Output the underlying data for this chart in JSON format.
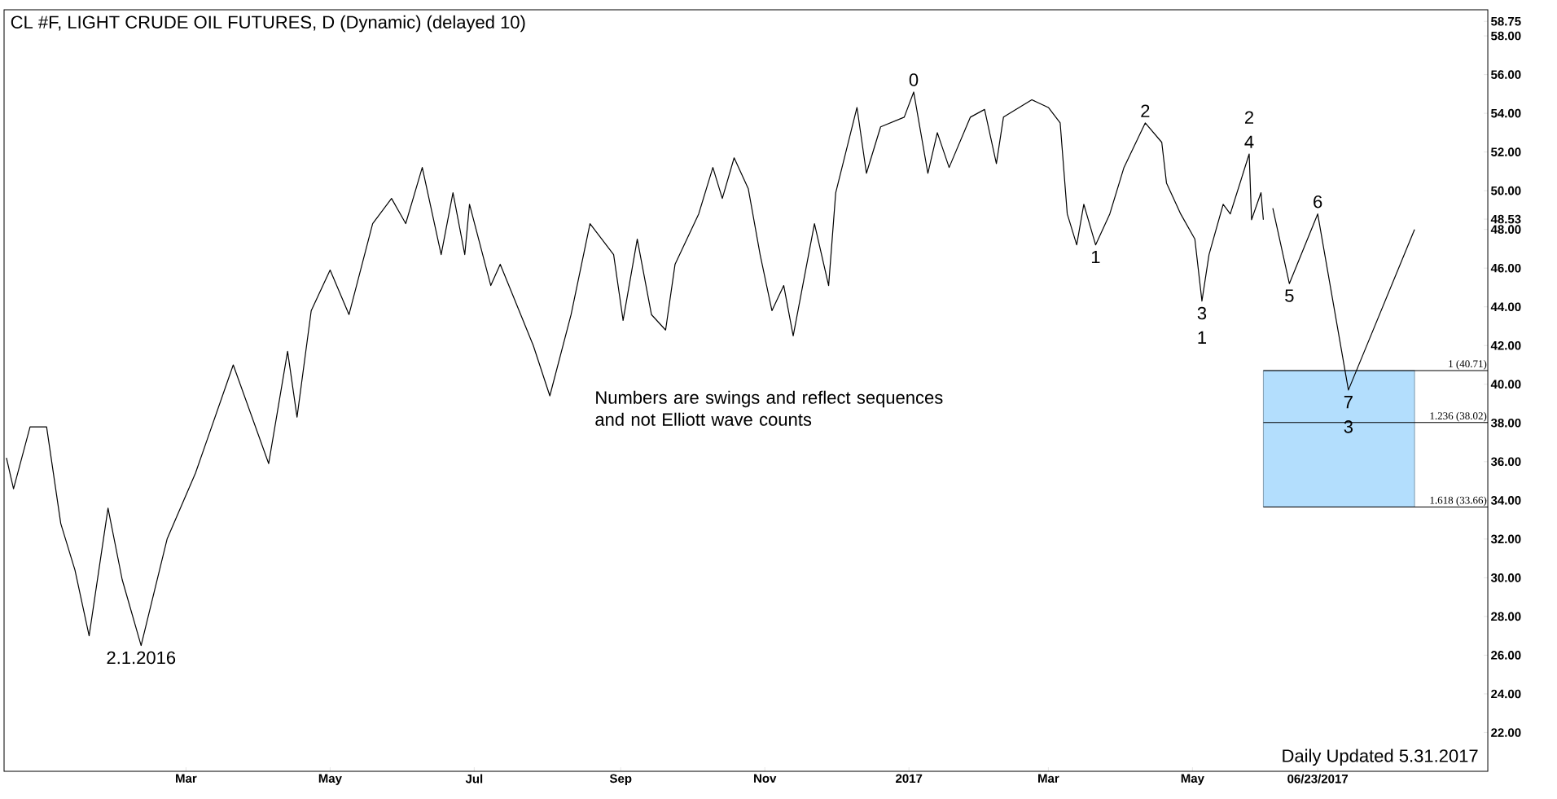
{
  "chart_data": {
    "type": "line",
    "title": "CL #F, LIGHT CRUDE OIL FUTURES, D (Dynamic) (delayed 10)",
    "xlim": [
      "2015-12-15",
      "2017-09-03"
    ],
    "xticks": [
      {
        "value": "2016-03-01",
        "label": "Mar"
      },
      {
        "value": "2016-05-01",
        "label": "May"
      },
      {
        "value": "2016-07-01",
        "label": "Jul"
      },
      {
        "value": "2016-09-01",
        "label": "Sep"
      },
      {
        "value": "2016-11-01",
        "label": "Nov"
      },
      {
        "value": "2017-01-01",
        "label": "2017"
      },
      {
        "value": "2017-03-01",
        "label": "Mar"
      },
      {
        "value": "2017-05-01",
        "label": "May"
      },
      {
        "value": "2017-06-23",
        "label": "06/23/2017"
      }
    ],
    "ylim": [
      20.0,
      59.35
    ],
    "yticks": [
      {
        "value": 22,
        "label": "22.00"
      },
      {
        "value": 24,
        "label": "24.00"
      },
      {
        "value": 26,
        "label": "26.00"
      },
      {
        "value": 28,
        "label": "28.00"
      },
      {
        "value": 30,
        "label": "30.00"
      },
      {
        "value": 32,
        "label": "32.00"
      },
      {
        "value": 34,
        "label": "34.00"
      },
      {
        "value": 36,
        "label": "36.00"
      },
      {
        "value": 38,
        "label": "38.00"
      },
      {
        "value": 40,
        "label": "40.00"
      },
      {
        "value": 42,
        "label": "42.00"
      },
      {
        "value": 44,
        "label": "44.00"
      },
      {
        "value": 46,
        "label": "46.00"
      },
      {
        "value": 48,
        "label": "48.00"
      },
      {
        "value": 48.53,
        "label": "48.53"
      },
      {
        "value": 50,
        "label": "50.00"
      },
      {
        "value": 52,
        "label": "52.00"
      },
      {
        "value": 54,
        "label": "54.00"
      },
      {
        "value": 56,
        "label": "56.00"
      },
      {
        "value": 58,
        "label": "58.00"
      },
      {
        "value": 58.75,
        "label": "58.75"
      }
    ],
    "series": [
      {
        "color": "#000000",
        "x": [
          "2015-12-16",
          "2015-12-19",
          "2015-12-26",
          "2016-01-02",
          "2016-01-08",
          "2016-01-14",
          "2016-01-20",
          "2016-01-28",
          "2016-02-03",
          "2016-02-11",
          "2016-02-22",
          "2016-03-05",
          "2016-03-21",
          "2016-04-05",
          "2016-04-13",
          "2016-04-17",
          "2016-04-23",
          "2016-05-01",
          "2016-05-09",
          "2016-05-19",
          "2016-05-27",
          "2016-06-02",
          "2016-06-09",
          "2016-06-17",
          "2016-06-22",
          "2016-06-27",
          "2016-06-29",
          "2016-07-08",
          "2016-07-12",
          "2016-07-26",
          "2016-08-02",
          "2016-08-11",
          "2016-08-19",
          "2016-08-29",
          "2016-09-02",
          "2016-09-08",
          "2016-09-14",
          "2016-09-20",
          "2016-09-24",
          "2016-10-04",
          "2016-10-10",
          "2016-10-14",
          "2016-10-19",
          "2016-10-25",
          "2016-10-30",
          "2016-11-04",
          "2016-11-09",
          "2016-11-13",
          "2016-11-22",
          "2016-11-28",
          "2016-12-01",
          "2016-12-10",
          "2016-12-14",
          "2016-12-20",
          "2016-12-30",
          "2017-01-03",
          "2017-01-09",
          "2017-01-13",
          "2017-01-18",
          "2017-01-27",
          "2017-02-02",
          "2017-02-07",
          "2017-02-10",
          "2017-02-22",
          "2017-03-01",
          "2017-03-06",
          "2017-03-09",
          "2017-03-13",
          "2017-03-16",
          "2017-03-21",
          "2017-03-27",
          "2017-04-02",
          "2017-04-11",
          "2017-04-18",
          "2017-04-20",
          "2017-04-26",
          "2017-05-02",
          "2017-05-05",
          "2017-05-08",
          "2017-05-14",
          "2017-05-17",
          "2017-05-25",
          "2017-05-26",
          "2017-05-30",
          "2017-05-31"
        ],
        "values": [
          36.2,
          34.6,
          37.8,
          37.8,
          32.8,
          30.4,
          27.0,
          33.6,
          29.9,
          26.5,
          32.0,
          35.4,
          41.0,
          35.9,
          41.7,
          38.3,
          43.8,
          45.9,
          43.6,
          48.3,
          49.6,
          48.3,
          51.2,
          46.7,
          49.9,
          46.7,
          49.3,
          45.1,
          46.2,
          42.0,
          39.4,
          43.6,
          48.3,
          46.7,
          43.3,
          47.5,
          43.6,
          42.8,
          46.2,
          48.8,
          51.2,
          49.6,
          51.7,
          50.1,
          46.7,
          43.8,
          45.1,
          42.5,
          48.3,
          45.1,
          49.9,
          54.3,
          50.9,
          53.3,
          53.8,
          55.1,
          50.9,
          53.0,
          51.2,
          53.8,
          54.2,
          51.4,
          53.8,
          54.7,
          54.3,
          53.5,
          48.8,
          47.2,
          49.3,
          47.2,
          48.8,
          51.2,
          53.5,
          52.5,
          50.4,
          48.8,
          47.5,
          44.3,
          46.7,
          49.3,
          48.8,
          51.9,
          48.5,
          49.9,
          48.5
        ]
      },
      {
        "color": "#000000",
        "x": [
          "2017-06-04",
          "2017-06-11",
          "2017-06-23",
          "2017-07-06",
          "2017-08-03"
        ],
        "values": [
          49.1,
          45.2,
          48.8,
          39.7,
          48.0
        ]
      }
    ],
    "bands": [
      {
        "axis": "y",
        "from": 33.66,
        "to": 40.71,
        "color": "#b3defd"
      }
    ],
    "ref_lines": [
      {
        "axis": "y",
        "value": 40.71,
        "label": "1 (40.71)",
        "color": "#000000"
      },
      {
        "axis": "y",
        "value": 38.02,
        "label": "1.236 (38.02)",
        "color": "#000000"
      },
      {
        "axis": "y",
        "value": 33.66,
        "label": "1.618 (33.66)",
        "color": "#000000"
      }
    ],
    "annotations": [
      {
        "text": "0",
        "x": "2017-01-03",
        "y": 55.1
      },
      {
        "text": "1",
        "x": "2017-03-21",
        "y": 47.2
      },
      {
        "text": "2",
        "x": "2017-04-11",
        "y": 53.5
      },
      {
        "text": "3",
        "x": "2017-05-05",
        "y": 44.3
      },
      {
        "text": "1",
        "x": "2017-05-05",
        "y": 44.3
      },
      {
        "text": "4",
        "x": "2017-05-25",
        "y": 51.9
      },
      {
        "text": "2",
        "x": "2017-05-25",
        "y": 51.9
      },
      {
        "text": "5",
        "x": "2017-06-11",
        "y": 45.2
      },
      {
        "text": "6",
        "x": "2017-06-23",
        "y": 48.8
      },
      {
        "text": "7",
        "x": "2017-07-06",
        "y": 39.7
      },
      {
        "text": "3",
        "x": "2017-07-06",
        "y": 39.7
      },
      {
        "text": "2.1.2016",
        "x": "2016-02-11",
        "y": 26.5
      },
      "Numbers are swings and reflect sequences and not Elliott wave counts",
      "Daily Updated 5.31.2017"
    ]
  }
}
